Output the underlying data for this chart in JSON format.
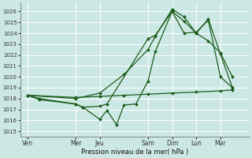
{
  "background_color": "#cce8e4",
  "grid_color": "#ffffff",
  "line_color": "#1a5c1a",
  "xlabel": "Pression niveau de la mer( hPa )",
  "ylim": [
    1014.5,
    1026.8
  ],
  "yticks": [
    1015,
    1016,
    1017,
    1018,
    1019,
    1020,
    1021,
    1022,
    1023,
    1024,
    1025,
    1026
  ],
  "xtick_labels": [
    "Ven",
    "Mer",
    "Jeu",
    "Sam",
    "Dim",
    "Lun",
    "Mar"
  ],
  "xtick_positions": [
    0,
    20,
    30,
    50,
    60,
    70,
    80
  ],
  "xlim": [
    -3,
    92
  ],
  "lines": [
    {
      "x": [
        0,
        5,
        20,
        23,
        30,
        33,
        37,
        40,
        45,
        50,
        53,
        60,
        65,
        70,
        75,
        80,
        85
      ],
      "y": [
        1018.3,
        1018.0,
        1017.5,
        1017.2,
        1016.1,
        1016.9,
        1015.6,
        1017.4,
        1017.5,
        1019.6,
        1022.3,
        1026.0,
        1024.0,
        1024.1,
        1025.2,
        1020.0,
        1019.0
      ]
    },
    {
      "x": [
        0,
        20,
        30,
        40,
        50,
        53,
        60,
        65,
        70,
        75,
        80,
        85
      ],
      "y": [
        1018.3,
        1018.0,
        1018.5,
        1020.2,
        1022.5,
        1023.7,
        1026.2,
        1025.5,
        1024.0,
        1025.3,
        1022.1,
        1019.0
      ]
    },
    {
      "x": [
        0,
        20,
        30,
        40,
        50,
        60,
        70,
        80,
        85
      ],
      "y": [
        1018.3,
        1018.1,
        1018.2,
        1018.3,
        1018.4,
        1018.5,
        1018.6,
        1018.7,
        1018.8
      ]
    },
    {
      "x": [
        0,
        5,
        20,
        23,
        30,
        33,
        50,
        53,
        60,
        65,
        70,
        75,
        80,
        85
      ],
      "y": [
        1018.3,
        1017.9,
        1017.5,
        1017.2,
        1017.3,
        1017.5,
        1023.5,
        1023.8,
        1026.0,
        1025.1,
        1024.0,
        1023.3,
        1022.2,
        1020.0
      ]
    }
  ],
  "figsize": [
    3.2,
    2.0
  ],
  "dpi": 100
}
